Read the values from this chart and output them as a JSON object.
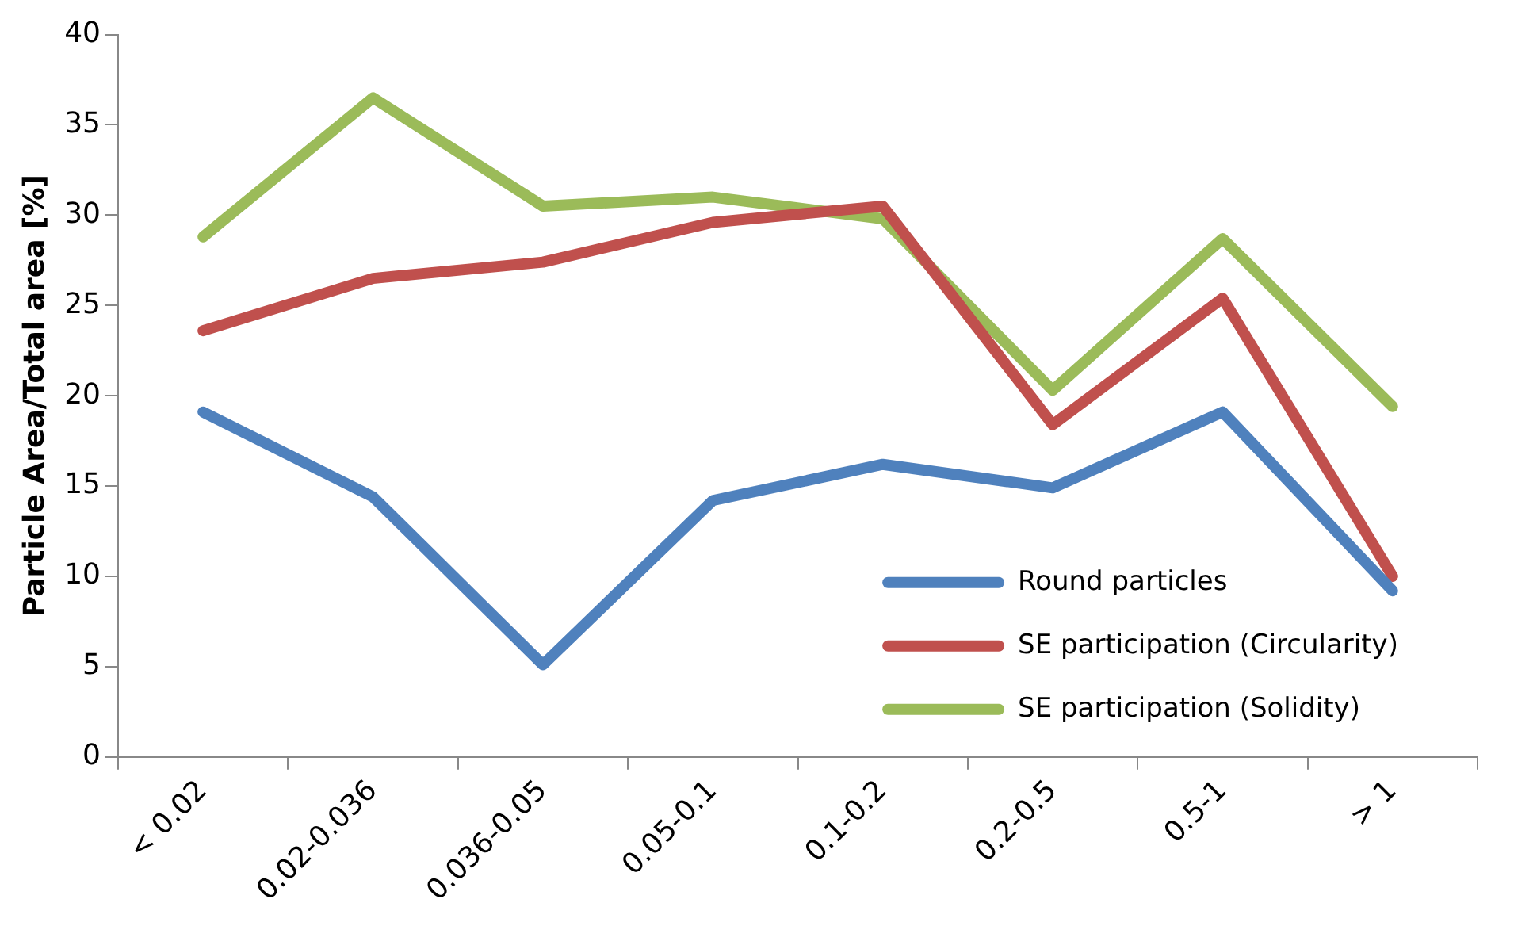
{
  "chart_data": {
    "type": "line",
    "ylabel": "Particle Area/Total area [%]",
    "categories": [
      "< 0.02",
      "0.02-0.036",
      "0.036-0.05",
      "0.05-0.1",
      "0.1-0.2",
      "0.2-0.5",
      "0.5-1",
      "> 1"
    ],
    "series": [
      {
        "name": "Round particles",
        "color": "#4f81bd",
        "values": [
          19.1,
          14.4,
          5.1,
          14.2,
          16.2,
          14.9,
          19.1,
          9.2
        ]
      },
      {
        "name": "SE participation (Circularity)",
        "color": "#c0504d",
        "values": [
          23.6,
          26.5,
          27.4,
          29.6,
          30.5,
          18.4,
          25.4,
          10.0
        ]
      },
      {
        "name": "SE participation (Solidity)",
        "color": "#9bbb59",
        "values": [
          28.8,
          36.5,
          30.5,
          31.0,
          29.8,
          20.3,
          28.7,
          19.4
        ]
      }
    ],
    "ylim": [
      0,
      40
    ],
    "yticks": [
      0,
      5,
      10,
      15,
      20,
      25,
      30,
      35,
      40
    ],
    "grid": false,
    "legend": "bottom right",
    "marker": "none",
    "line_style": "solid"
  }
}
